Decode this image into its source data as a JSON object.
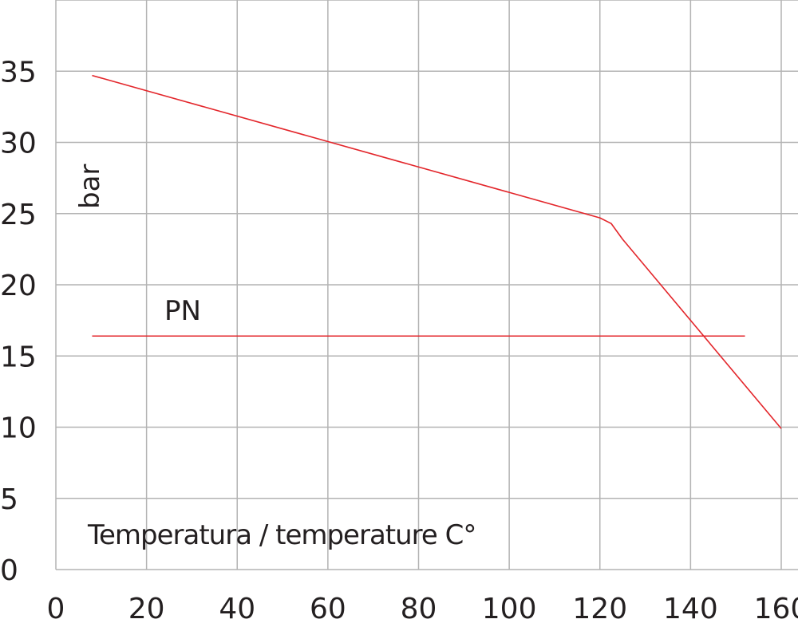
{
  "chart_data": {
    "type": "line",
    "title": "",
    "xlabel": "Temperatura / temperature C°",
    "ylabel": "bar",
    "xlim": [
      0,
      160
    ],
    "ylim": [
      0,
      40
    ],
    "x_ticks": [
      "0",
      "20",
      "40",
      "60",
      "80",
      "100",
      "120",
      "140",
      "160"
    ],
    "y_ticks": [
      "0",
      "5",
      "10",
      "15",
      "20",
      "25",
      "30",
      "35"
    ],
    "grid": true,
    "line_color": "#e3262b",
    "grid_color": "#b3b3b3",
    "series": [
      {
        "points": [
          [
            8,
            34.7
          ],
          [
            120,
            24.7
          ],
          [
            122.5,
            24.3
          ],
          [
            125,
            23.2
          ],
          [
            160,
            9.9
          ]
        ]
      },
      {
        "name": "PN",
        "points": [
          [
            8,
            16.4
          ],
          [
            152,
            16.4
          ]
        ]
      }
    ],
    "annotations": [
      "PN"
    ]
  }
}
